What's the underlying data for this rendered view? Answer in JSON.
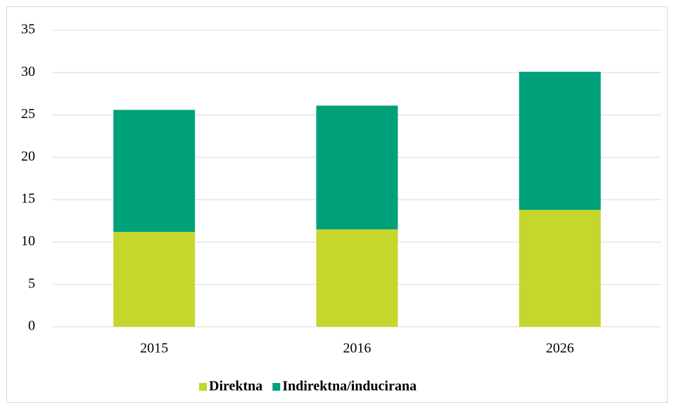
{
  "chart_data": {
    "type": "stacked_bar",
    "categories": [
      "2015",
      "2016",
      "2026"
    ],
    "series": [
      {
        "name": "Direktna",
        "color": "#c5d62d",
        "values": [
          11.2,
          11.5,
          13.8
        ]
      },
      {
        "name": "Indirektna/inducirana",
        "color": "#00a07a",
        "values": [
          14.4,
          14.6,
          16.3
        ]
      }
    ],
    "ylim": [
      0,
      35
    ],
    "yticks": [
      0,
      5,
      10,
      15,
      20,
      25,
      30,
      35
    ],
    "grid": true,
    "legend": "bottom"
  }
}
